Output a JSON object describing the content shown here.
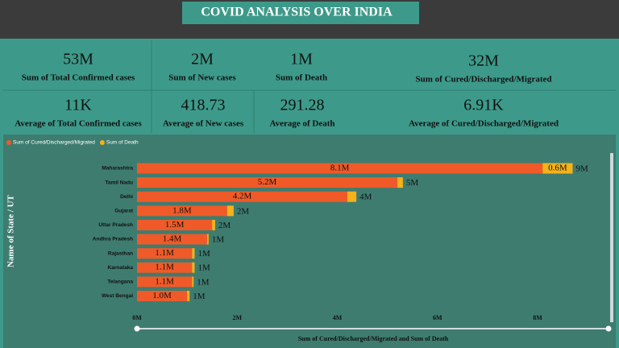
{
  "header": {
    "title": "COVID ANALYSIS OVER INDIA"
  },
  "cards": [
    {
      "value": "53M",
      "label": "Sum of Total Confirmed cases"
    },
    {
      "value": "2M",
      "label": "Sum of New cases"
    },
    {
      "value": "1M",
      "label": "Sum of Death"
    },
    {
      "value": "32M",
      "label": "Sum of Cured/Discharged/Migrated"
    },
    {
      "value": "11K",
      "label": "Average of Total Confirmed cases"
    },
    {
      "value": "418.73",
      "label": "Average of New cases"
    },
    {
      "value": "291.28",
      "label": "Average of Death"
    },
    {
      "value": "6.91K",
      "label": "Average of Cured/Discharged/Migrated"
    }
  ],
  "chart_data": {
    "type": "stacked-bar-horizontal",
    "x_label": "Sum of Cured/Discharged/Migrated and Sum of Death",
    "y_label": "Name of State / UT",
    "categories": [
      "Maharashtra",
      "Tamil Nadu",
      "Delhi",
      "Gujarat",
      "Uttar Pradesh",
      "Andhra Pradesh",
      "Rajasthan",
      "Karnataka",
      "Telangana",
      "West Bengal"
    ],
    "series": [
      {
        "name": "Sum of Cured/Discharged/Migrated",
        "color": "#f05a28",
        "values": [
          8100000,
          5200000,
          4200000,
          1800000,
          1500000,
          1400000,
          1100000,
          1100000,
          1100000,
          1000000
        ],
        "value_labels": [
          "8.1M",
          "5.2M",
          "4.2M",
          "1.8M",
          "1.5M",
          "1.4M",
          "1.1M",
          "1.1M",
          "1.1M",
          "1.0M"
        ]
      },
      {
        "name": "Sum of Death",
        "color": "#f5b21a",
        "values": [
          600000,
          110000,
          180000,
          130000,
          60000,
          30000,
          50000,
          50000,
          30000,
          50000
        ],
        "value_labels": [
          "0.6M",
          null,
          null,
          null,
          null,
          null,
          null,
          null,
          null,
          null
        ]
      }
    ],
    "totals": [
      8700000,
      5310000,
      4380000,
      1930000,
      1560000,
      1430000,
      1150000,
      1150000,
      1130000,
      1050000
    ],
    "total_labels": [
      "9M",
      "5M",
      "4M",
      "2M",
      "2M",
      "1M",
      "1M",
      "1M",
      "1M",
      "1M"
    ],
    "xlim": [
      0,
      9400000
    ],
    "xticks": [
      {
        "value": 0,
        "label": "0M"
      },
      {
        "value": 2000000,
        "label": "2M"
      },
      {
        "value": 4000000,
        "label": "4M"
      },
      {
        "value": 6000000,
        "label": "6M"
      },
      {
        "value": 8000000,
        "label": "8M"
      }
    ],
    "legend": "top-left"
  }
}
